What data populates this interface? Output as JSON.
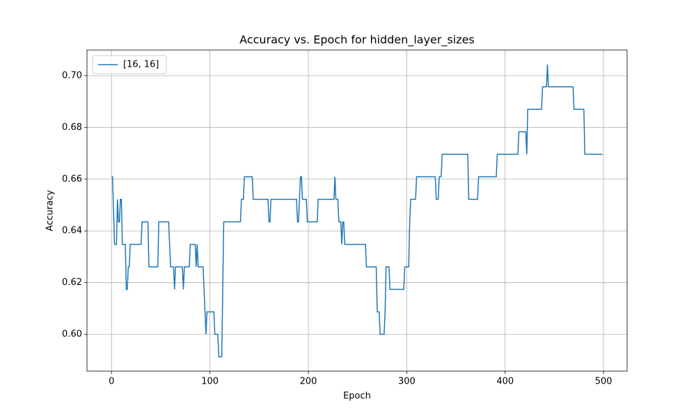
{
  "chart_data": {
    "type": "line",
    "title": "Accuracy vs. Epoch for hidden_layer_sizes",
    "x_label": "Epoch",
    "y_label": "Accuracy",
    "x": [
      0,
      1,
      3,
      5,
      6,
      7,
      8,
      9,
      10,
      11,
      14,
      15,
      16,
      17,
      18,
      19,
      30,
      31,
      37,
      38,
      47,
      48,
      58,
      59,
      60,
      63,
      64,
      65,
      72,
      73,
      74,
      79,
      80,
      85,
      86,
      87,
      88,
      93,
      96,
      97,
      104,
      105,
      108,
      109,
      112,
      114,
      131,
      132,
      134,
      135,
      143,
      144,
      159,
      160,
      161,
      162,
      188,
      189,
      190,
      191,
      192,
      193,
      194,
      198,
      199,
      209,
      210,
      226,
      227,
      228,
      230,
      231,
      233,
      234,
      235,
      236,
      237,
      258,
      259,
      269,
      270,
      272,
      273,
      277,
      278,
      279,
      282,
      283,
      297,
      298,
      302,
      303,
      304,
      309,
      310,
      329,
      330,
      332,
      333,
      335,
      336,
      362,
      363,
      372,
      373,
      391,
      392,
      413,
      414,
      421,
      422,
      423,
      437,
      438,
      442,
      443,
      444,
      469,
      470,
      480,
      481,
      499
    ],
    "series": [
      {
        "name": "[16, 16]",
        "color": "#1f77b4",
        "values": [
          0.6609,
          0.6609,
          0.6348,
          0.6348,
          0.6522,
          0.6435,
          0.6435,
          0.6522,
          0.6522,
          0.6348,
          0.6348,
          0.6174,
          0.6174,
          0.6261,
          0.6261,
          0.6348,
          0.6348,
          0.6435,
          0.6435,
          0.6261,
          0.6261,
          0.6435,
          0.6435,
          0.6348,
          0.6261,
          0.6261,
          0.6174,
          0.6261,
          0.6261,
          0.6174,
          0.6261,
          0.6261,
          0.6348,
          0.6348,
          0.6261,
          0.6348,
          0.6261,
          0.6261,
          0.6,
          0.6087,
          0.6087,
          0.6,
          0.6,
          0.5913,
          0.5913,
          0.6435,
          0.6435,
          0.6522,
          0.6522,
          0.6609,
          0.6609,
          0.6522,
          0.6522,
          0.6435,
          0.6435,
          0.6522,
          0.6522,
          0.6435,
          0.6435,
          0.6522,
          0.6609,
          0.6609,
          0.6522,
          0.6522,
          0.6435,
          0.6435,
          0.6522,
          0.6522,
          0.6609,
          0.6522,
          0.6522,
          0.6435,
          0.6435,
          0.6348,
          0.6435,
          0.6435,
          0.6348,
          0.6348,
          0.6261,
          0.6261,
          0.6087,
          0.6087,
          0.6,
          0.6,
          0.6087,
          0.6261,
          0.6261,
          0.6174,
          0.6174,
          0.6261,
          0.6261,
          0.6435,
          0.6522,
          0.6522,
          0.6609,
          0.6609,
          0.6522,
          0.6522,
          0.6609,
          0.6609,
          0.6696,
          0.6696,
          0.6522,
          0.6522,
          0.6609,
          0.6609,
          0.6696,
          0.6696,
          0.6783,
          0.6783,
          0.6696,
          0.687,
          0.687,
          0.6957,
          0.6957,
          0.7043,
          0.6957,
          0.6957,
          0.687,
          0.687,
          0.6696,
          0.6696
        ]
      }
    ],
    "xlim": [
      -24.95,
      523.95
    ],
    "ylim": [
      0.5858,
      0.7099
    ],
    "xticks": [
      0,
      100,
      200,
      300,
      400,
      500
    ],
    "yticks": [
      {
        "value": 0.6,
        "label": "0.60"
      },
      0.62,
      0.64,
      0.66,
      0.68,
      {
        "value": 0.7,
        "label": "0.70"
      }
    ],
    "grid": true,
    "legend": "upper left"
  }
}
